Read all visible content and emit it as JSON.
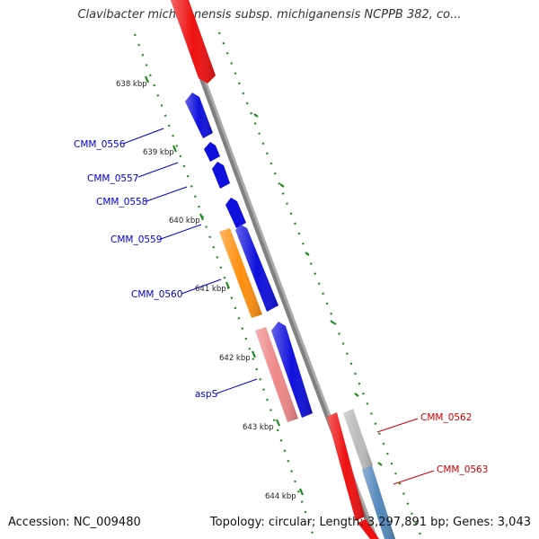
{
  "title": "Clavibacter michiganensis subsp. michiganensis NCPPB 382, co...",
  "footer": {
    "accession": "Accession: NC_009480",
    "topology": "Topology: circular; Length: 3,297,891 bp; Genes: 3,043"
  },
  "colors": {
    "backbone": "#808080",
    "tick": "#1f8a1f",
    "forward_label": "#0000cc",
    "reverse_label": "#cc0000"
  },
  "kbp_ticks": [
    {
      "label": "638 kbp"
    },
    {
      "label": "639 kbp"
    },
    {
      "label": "640 kbp"
    },
    {
      "label": "641 kbp"
    },
    {
      "label": "642 kbp"
    },
    {
      "label": "643 kbp"
    },
    {
      "label": "644 kbp"
    }
  ],
  "genes": [
    {
      "name": "",
      "color": "#ee1111"
    },
    {
      "name": "CMM_0556",
      "color": "#1010dd"
    },
    {
      "name": "CMM_0557",
      "color": "#1010dd"
    },
    {
      "name": "CMM_0558",
      "color": "#1010dd"
    },
    {
      "name": "CMM_0559",
      "color": "#1010dd"
    },
    {
      "name": "CMM_0560",
      "color": "#ff9010"
    },
    {
      "name": "",
      "color": "#1010dd"
    },
    {
      "name": "aspS",
      "color": "#ee8888"
    },
    {
      "name": "",
      "color": "#1010dd"
    },
    {
      "name": "",
      "color": "#ee1111"
    },
    {
      "name": "CMM_0562",
      "color": "#bbbbbb"
    },
    {
      "name": "",
      "color": "#ee1111"
    },
    {
      "name": "CMM_0563",
      "color": "#5588bb"
    }
  ]
}
